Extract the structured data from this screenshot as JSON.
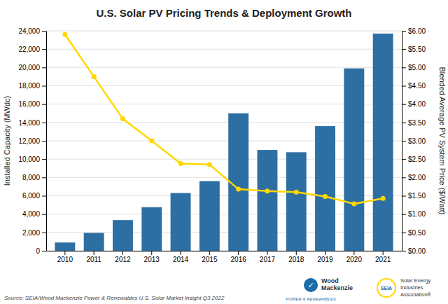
{
  "chart_data": {
    "type": "bar",
    "title": "U.S. Solar PV Pricing Trends & Deployment Growth",
    "categories": [
      "2010",
      "2011",
      "2012",
      "2013",
      "2014",
      "2015",
      "2016",
      "2017",
      "2018",
      "2019",
      "2020",
      "2021"
    ],
    "series": [
      {
        "type": "bar",
        "color": "#2E6FA3",
        "values": [
          900,
          1950,
          3350,
          4750,
          6300,
          7600,
          15000,
          11000,
          10750,
          13600,
          19900,
          23700
        ]
      },
      {
        "type": "line",
        "axis": "y2",
        "color": "#FFD700",
        "marker": "circle",
        "values": [
          5.9,
          4.75,
          3.6,
          3.0,
          2.38,
          2.35,
          1.68,
          1.63,
          1.6,
          1.48,
          1.28,
          1.43
        ]
      }
    ],
    "ylabel": "Installed Capacity (MWdc)",
    "y2label": "Blended Average PV System Price ($/Watt)",
    "ylim": [
      0,
      24000
    ],
    "yticks": [
      0,
      {
        "value": 2000,
        "label": "2,000"
      },
      {
        "value": 4000,
        "label": "4,000"
      },
      {
        "value": 6000,
        "label": "6,000"
      },
      {
        "value": 8000,
        "label": "8,000"
      },
      {
        "value": 10000,
        "label": "10,000"
      },
      {
        "value": 12000,
        "label": "12,000"
      },
      {
        "value": 14000,
        "label": "14,000"
      },
      {
        "value": 16000,
        "label": "16,000"
      },
      {
        "value": 18000,
        "label": "18,000"
      },
      {
        "value": 20000,
        "label": "20,000"
      },
      {
        "value": 22000,
        "label": "22,000"
      },
      {
        "value": 24000,
        "label": "24,000"
      }
    ],
    "y2lim": [
      0,
      6.0
    ],
    "y2ticks": [
      {
        "value": 0.0,
        "label": "$0.00"
      },
      {
        "value": 0.5,
        "label": "$0.50"
      },
      {
        "value": 1.0,
        "label": "$1.00"
      },
      {
        "value": 1.5,
        "label": "$1.50"
      },
      {
        "value": 2.0,
        "label": "$2.00"
      },
      {
        "value": 2.5,
        "label": "$2.50"
      },
      {
        "value": 3.0,
        "label": "$3.00"
      },
      {
        "value": 3.5,
        "label": "$3.50"
      },
      {
        "value": 4.0,
        "label": "$4.00"
      },
      {
        "value": 4.5,
        "label": "$4.50"
      },
      {
        "value": 5.0,
        "label": "$5.00"
      },
      {
        "value": 5.5,
        "label": "$5.50"
      },
      {
        "value": 6.0,
        "label": "$6.00"
      }
    ],
    "grid": true,
    "annotations": [
      "Source: SEIA/Wood Mackenzie Power & Renewables U.S. Solar Market Insight Q3 2022",
      "✓",
      "Wood",
      "Mackenzie",
      "POWER & RENEWABLES",
      "SEIA",
      "Solar Energy",
      "Industries",
      "Association®"
    ]
  }
}
